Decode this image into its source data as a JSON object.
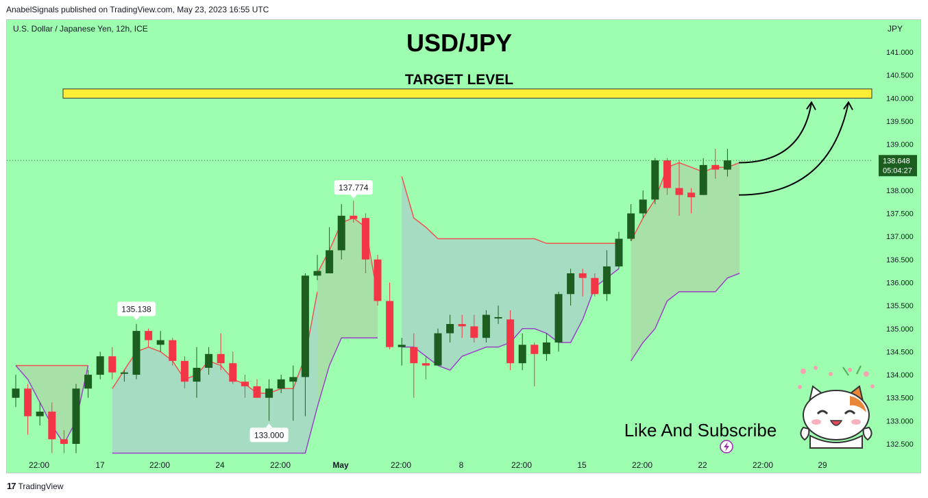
{
  "header": {
    "published": "AnabelSignals published on TradingView.com, May 23, 2023 16:55 UTC"
  },
  "chart_header": {
    "symbol": "U.S. Dollar / Japanese Yen, 12h, ICE",
    "currency": "JPY"
  },
  "annotations": {
    "title": "USD/JPY",
    "target_label": "TARGET LEVEL",
    "cta": "Like And Subscribe"
  },
  "footer": {
    "brand": "TradingView",
    "logo": "tradingview-logo-icon"
  },
  "colors": {
    "background": "#9dfeb0",
    "bull": "#1b5e20",
    "bear": "#f23645",
    "target_band": "#ffee33",
    "price_badge": "#1b5e20",
    "ichimoku_upper": "#f05252",
    "ichimoku_lower": "#9b40c8"
  },
  "chart_data": {
    "type": "candlestick",
    "y_axis": {
      "range": [
        132.2,
        141.8
      ],
      "ticks": [
        "141.000",
        "140.500",
        "140.000",
        "139.500",
        "139.000",
        "138.500",
        "138.000",
        "137.500",
        "137.000",
        "136.500",
        "136.000",
        "135.500",
        "135.000",
        "134.500",
        "134.000",
        "133.500",
        "133.000",
        "132.500"
      ]
    },
    "x_axis": {
      "ticks": [
        "22:00",
        "17",
        "22:00",
        "24",
        "22:00",
        "May",
        "22:00",
        "8",
        "22:00",
        "15",
        "22:00",
        "22",
        "22:00",
        "29"
      ]
    },
    "current_price": {
      "value": 138.648,
      "label": "138.648",
      "countdown": "05:04:27"
    },
    "target_zone": {
      "low": 140.0,
      "high": 140.2
    },
    "price_labels": [
      {
        "label": "137.774",
        "value": 137.774,
        "candle": 28,
        "pos": "above"
      },
      {
        "label": "135.138",
        "value": 135.138,
        "candle": 10,
        "pos": "above"
      },
      {
        "label": "133.000",
        "value": 133.0,
        "candle": 21,
        "pos": "below"
      }
    ],
    "candles": [
      {
        "o": 133.5,
        "h": 134.0,
        "l": 133.3,
        "c": 133.7
      },
      {
        "o": 133.7,
        "h": 133.8,
        "l": 132.7,
        "c": 133.1
      },
      {
        "o": 133.1,
        "h": 133.4,
        "l": 132.9,
        "c": 133.2
      },
      {
        "o": 133.2,
        "h": 133.4,
        "l": 132.3,
        "c": 132.6
      },
      {
        "o": 132.6,
        "h": 132.8,
        "l": 132.3,
        "c": 132.5
      },
      {
        "o": 132.5,
        "h": 133.8,
        "l": 132.3,
        "c": 133.7
      },
      {
        "o": 133.7,
        "h": 134.1,
        "l": 133.5,
        "c": 134.0
      },
      {
        "o": 134.0,
        "h": 134.5,
        "l": 133.9,
        "c": 134.4
      },
      {
        "o": 134.4,
        "h": 134.6,
        "l": 133.9,
        "c": 134.05
      },
      {
        "o": 134.05,
        "h": 134.1,
        "l": 133.85,
        "c": 134.05
      },
      {
        "o": 134.0,
        "h": 135.1,
        "l": 133.9,
        "c": 134.95
      },
      {
        "o": 134.95,
        "h": 135.0,
        "l": 134.6,
        "c": 134.75
      },
      {
        "o": 134.65,
        "h": 134.95,
        "l": 134.5,
        "c": 134.75
      },
      {
        "o": 134.75,
        "h": 134.8,
        "l": 134.2,
        "c": 134.3
      },
      {
        "o": 134.3,
        "h": 134.4,
        "l": 133.7,
        "c": 133.85
      },
      {
        "o": 133.85,
        "h": 134.6,
        "l": 133.5,
        "c": 134.15
      },
      {
        "o": 134.15,
        "h": 134.6,
        "l": 134.0,
        "c": 134.45
      },
      {
        "o": 134.45,
        "h": 134.9,
        "l": 134.1,
        "c": 134.25
      },
      {
        "o": 134.25,
        "h": 134.5,
        "l": 133.8,
        "c": 133.85
      },
      {
        "o": 133.85,
        "h": 134.0,
        "l": 133.5,
        "c": 133.75
      },
      {
        "o": 133.75,
        "h": 133.9,
        "l": 133.5,
        "c": 133.5
      },
      {
        "o": 133.5,
        "h": 133.9,
        "l": 133.0,
        "c": 133.7
      },
      {
        "o": 133.7,
        "h": 134.0,
        "l": 133.6,
        "c": 133.9
      },
      {
        "o": 133.85,
        "h": 134.2,
        "l": 133.0,
        "c": 133.95
      },
      {
        "o": 133.95,
        "h": 136.2,
        "l": 133.1,
        "c": 136.15
      },
      {
        "o": 136.15,
        "h": 136.6,
        "l": 136.05,
        "c": 136.25
      },
      {
        "o": 136.2,
        "h": 137.2,
        "l": 136.2,
        "c": 136.7
      },
      {
        "o": 136.7,
        "h": 137.7,
        "l": 136.5,
        "c": 137.45
      },
      {
        "o": 137.45,
        "h": 137.77,
        "l": 137.3,
        "c": 137.38
      },
      {
        "o": 137.4,
        "h": 137.5,
        "l": 136.2,
        "c": 136.5
      },
      {
        "o": 136.5,
        "h": 136.6,
        "l": 135.5,
        "c": 135.6
      },
      {
        "o": 135.6,
        "h": 136.0,
        "l": 134.55,
        "c": 134.6
      },
      {
        "o": 134.6,
        "h": 134.8,
        "l": 134.2,
        "c": 134.65
      },
      {
        "o": 134.6,
        "h": 134.9,
        "l": 133.5,
        "c": 134.25
      },
      {
        "o": 134.25,
        "h": 134.4,
        "l": 133.9,
        "c": 134.2
      },
      {
        "o": 134.2,
        "h": 135.0,
        "l": 134.2,
        "c": 134.9
      },
      {
        "o": 134.9,
        "h": 135.3,
        "l": 134.7,
        "c": 135.1
      },
      {
        "o": 135.1,
        "h": 135.3,
        "l": 134.8,
        "c": 135.05
      },
      {
        "o": 135.05,
        "h": 135.3,
        "l": 134.7,
        "c": 134.8
      },
      {
        "o": 134.8,
        "h": 135.4,
        "l": 134.7,
        "c": 135.3
      },
      {
        "o": 135.25,
        "h": 135.5,
        "l": 135.1,
        "c": 135.25
      },
      {
        "o": 135.2,
        "h": 135.4,
        "l": 134.1,
        "c": 134.25
      },
      {
        "o": 134.25,
        "h": 134.9,
        "l": 134.1,
        "c": 134.65
      },
      {
        "o": 134.65,
        "h": 134.7,
        "l": 133.75,
        "c": 134.45
      },
      {
        "o": 134.45,
        "h": 134.9,
        "l": 134.3,
        "c": 134.7
      },
      {
        "o": 134.7,
        "h": 135.8,
        "l": 134.5,
        "c": 135.75
      },
      {
        "o": 135.75,
        "h": 136.3,
        "l": 135.5,
        "c": 136.2
      },
      {
        "o": 136.2,
        "h": 136.3,
        "l": 135.7,
        "c": 136.1
      },
      {
        "o": 136.1,
        "h": 136.2,
        "l": 135.7,
        "c": 135.75
      },
      {
        "o": 135.75,
        "h": 136.7,
        "l": 135.6,
        "c": 136.35
      },
      {
        "o": 136.35,
        "h": 137.1,
        "l": 136.3,
        "c": 136.95
      },
      {
        "o": 136.95,
        "h": 137.7,
        "l": 136.9,
        "c": 137.5
      },
      {
        "o": 137.5,
        "h": 138.0,
        "l": 137.4,
        "c": 137.8
      },
      {
        "o": 137.8,
        "h": 138.7,
        "l": 137.7,
        "c": 138.65
      },
      {
        "o": 138.65,
        "h": 138.7,
        "l": 137.9,
        "c": 138.05
      },
      {
        "o": 138.05,
        "h": 138.65,
        "l": 137.45,
        "c": 137.9
      },
      {
        "o": 137.95,
        "h": 138.05,
        "l": 137.5,
        "c": 137.85
      },
      {
        "o": 137.9,
        "h": 138.7,
        "l": 137.9,
        "c": 138.55
      },
      {
        "o": 138.55,
        "h": 138.9,
        "l": 138.25,
        "c": 138.45
      },
      {
        "o": 138.45,
        "h": 138.9,
        "l": 138.3,
        "c": 138.65
      }
    ],
    "cloud_segments": [
      {
        "start": 0,
        "end": 6,
        "upper": [
          134.2,
          134.2,
          134.2,
          134.2,
          134.2,
          134.2,
          134.2
        ],
        "lower": [
          134.2,
          133.9,
          133.4,
          132.9,
          132.5,
          133.0,
          134.2
        ]
      },
      {
        "start": 8,
        "end": 25,
        "upper": [
          133.7,
          134.1,
          134.5,
          134.6,
          134.5,
          134.3,
          133.9,
          134.0,
          134.3,
          134.2,
          133.9,
          133.8,
          133.6,
          133.6,
          133.7,
          133.7,
          134.4,
          135.8
        ],
        "lower": [
          132.3,
          132.3,
          132.3,
          132.3,
          132.3,
          132.3,
          132.3,
          132.3,
          132.3,
          132.3,
          132.3,
          132.3,
          132.3,
          132.3,
          132.3,
          132.3,
          132.3,
          133.3
        ]
      },
      {
        "start": 25,
        "end": 30,
        "upper": [
          136.2,
          136.7,
          137.3,
          137.4,
          137.2,
          135.7
        ],
        "lower": [
          133.3,
          134.2,
          134.8,
          134.8,
          134.8,
          134.8
        ]
      },
      {
        "start": 32,
        "end": 50,
        "upper": [
          138.3,
          137.4,
          137.2,
          136.95,
          136.95,
          136.95,
          136.95,
          136.95,
          136.95,
          136.95,
          136.95,
          136.95,
          136.85,
          136.85,
          136.85,
          136.85,
          136.85,
          136.85,
          136.85
        ],
        "lower": [
          134.6,
          134.6,
          134.4,
          134.2,
          134.1,
          134.4,
          134.5,
          134.6,
          134.6,
          134.7,
          135.0,
          135.0,
          134.9,
          134.7,
          134.7,
          135.2,
          135.9,
          136.1,
          136.3
        ]
      },
      {
        "start": 51,
        "end": 60,
        "upper": [
          136.9,
          137.4,
          137.8,
          138.5,
          138.6,
          138.5,
          138.4,
          138.5,
          138.5,
          138.6
        ],
        "lower": [
          134.3,
          134.7,
          135.0,
          135.6,
          135.8,
          135.8,
          135.8,
          135.8,
          136.1,
          136.2
        ]
      }
    ]
  }
}
